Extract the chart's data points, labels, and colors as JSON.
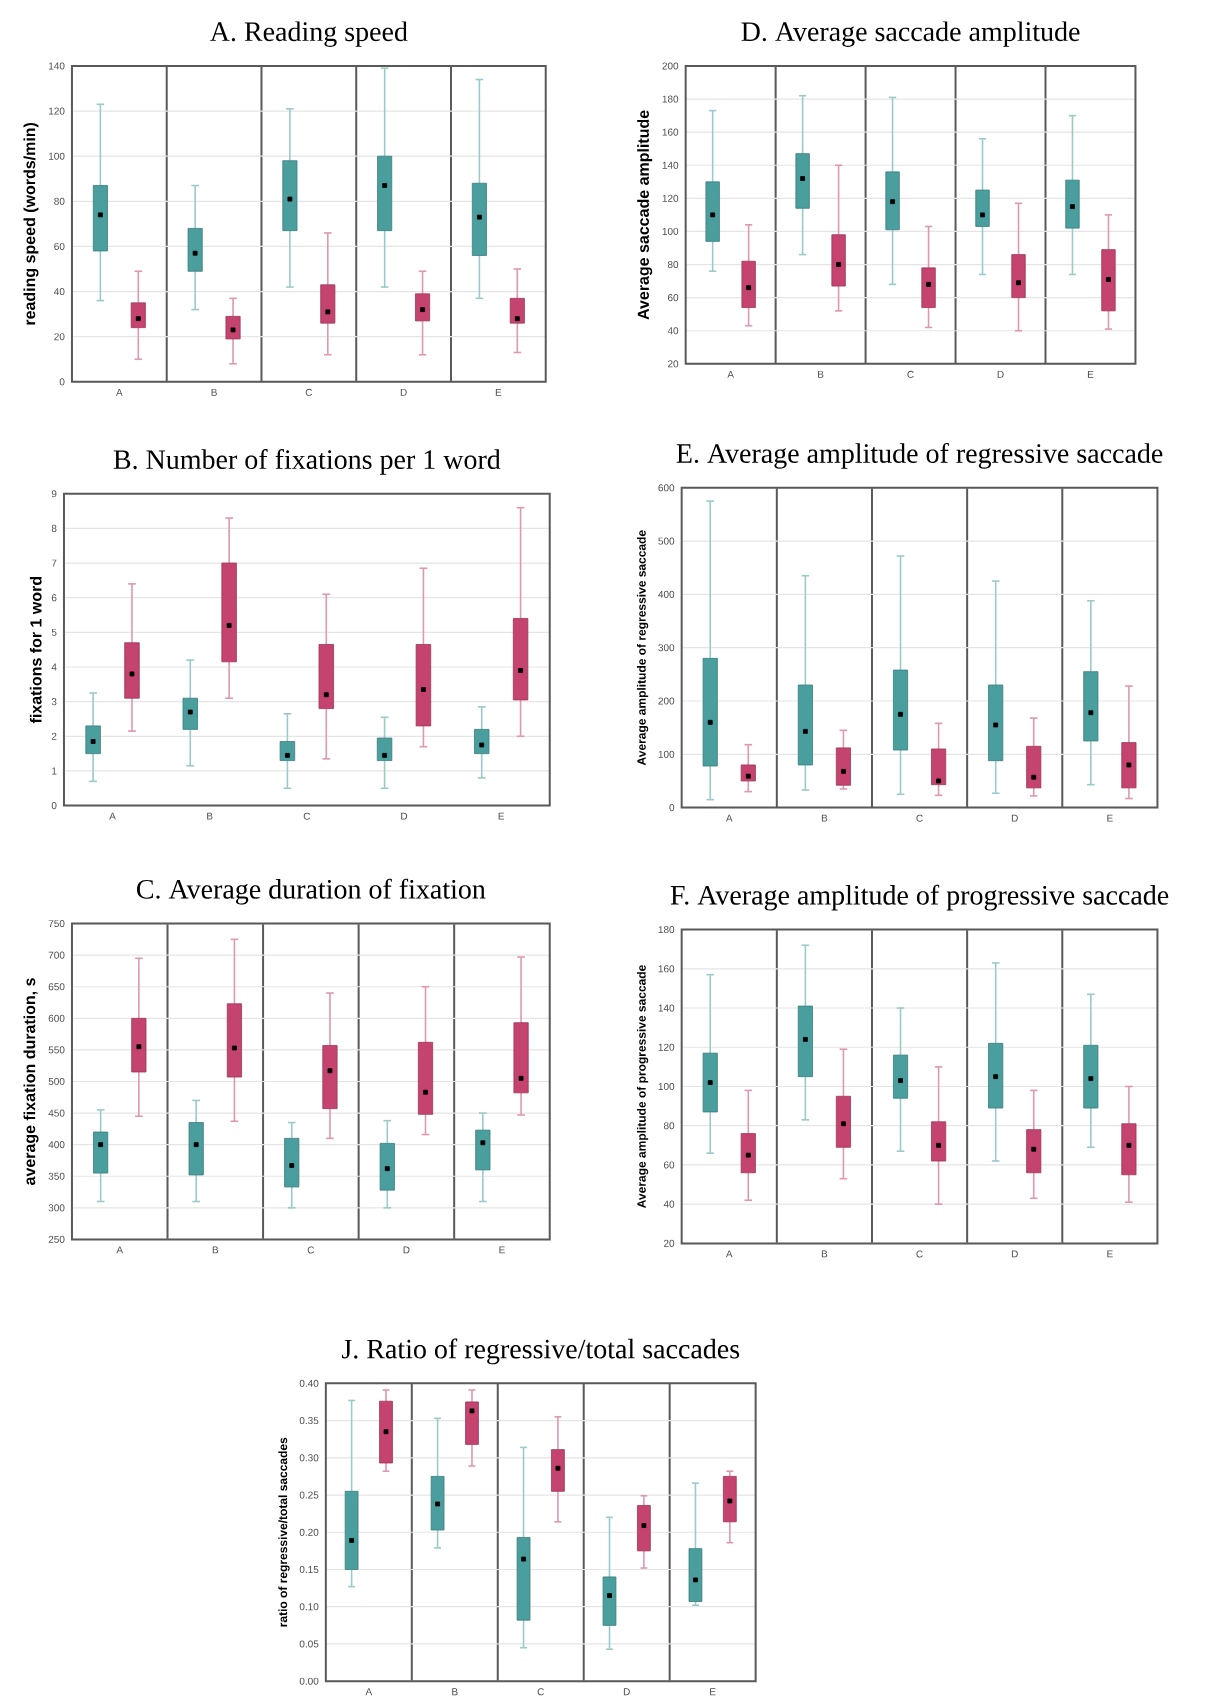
{
  "chart_data": [
    {
      "type": "box",
      "title": "A. Reading speed",
      "ylabel": "reading speed (words/min)",
      "categories": [
        "A",
        "B",
        "C",
        "D",
        "E"
      ],
      "ylim": [
        0,
        140
      ],
      "yticks": [
        0,
        20,
        40,
        60,
        80,
        100,
        120,
        140
      ],
      "grid": true,
      "series": [
        {
          "color": "#4a9e9e",
          "boxes": [
            {
              "low": 36,
              "q1": 58,
              "median": 74,
              "q3": 87,
              "high": 123
            },
            {
              "low": 32,
              "q1": 49,
              "median": 57,
              "q3": 68,
              "high": 87
            },
            {
              "low": 42,
              "q1": 67,
              "median": 81,
              "q3": 98,
              "high": 121
            },
            {
              "low": 42,
              "q1": 67,
              "median": 87,
              "q3": 100,
              "high": 139
            },
            {
              "low": 37,
              "q1": 56,
              "median": 73,
              "q3": 88,
              "high": 134
            }
          ]
        },
        {
          "color": "#c4436f",
          "boxes": [
            {
              "low": 10,
              "q1": 24,
              "median": 28,
              "q3": 35,
              "high": 49
            },
            {
              "low": 8,
              "q1": 19,
              "median": 23,
              "q3": 29,
              "high": 37
            },
            {
              "low": 12,
              "q1": 26,
              "median": 31,
              "q3": 43,
              "high": 66
            },
            {
              "low": 12,
              "q1": 27,
              "median": 32,
              "q3": 39,
              "high": 49
            },
            {
              "low": 13,
              "q1": 26,
              "median": 28,
              "q3": 37,
              "high": 50
            }
          ]
        }
      ]
    },
    {
      "type": "box",
      "title": "B. Number of fixations per 1 word",
      "ylabel": "fixations for 1 word",
      "categories": [
        "A",
        "B",
        "C",
        "D",
        "E"
      ],
      "ylim": [
        0,
        9
      ],
      "yticks": [
        0,
        1,
        2,
        3,
        4,
        5,
        6,
        7,
        8,
        9
      ],
      "grid": "y",
      "series": [
        {
          "color": "#4a9e9e",
          "boxes": [
            {
              "low": 0.7,
              "q1": 1.5,
              "median": 1.85,
              "q3": 2.3,
              "high": 3.25
            },
            {
              "low": 1.15,
              "q1": 2.2,
              "median": 2.7,
              "q3": 3.1,
              "high": 4.2
            },
            {
              "low": 0.5,
              "q1": 1.3,
              "median": 1.45,
              "q3": 1.85,
              "high": 2.65
            },
            {
              "low": 0.5,
              "q1": 1.3,
              "median": 1.45,
              "q3": 1.95,
              "high": 2.55
            },
            {
              "low": 0.8,
              "q1": 1.5,
              "median": 1.75,
              "q3": 2.2,
              "high": 2.85
            }
          ]
        },
        {
          "color": "#c4436f",
          "boxes": [
            {
              "low": 2.15,
              "q1": 3.1,
              "median": 3.8,
              "q3": 4.7,
              "high": 6.4
            },
            {
              "low": 3.1,
              "q1": 4.15,
              "median": 5.2,
              "q3": 7.0,
              "high": 8.3
            },
            {
              "low": 1.35,
              "q1": 2.8,
              "median": 3.2,
              "q3": 4.65,
              "high": 6.1
            },
            {
              "low": 1.7,
              "q1": 2.3,
              "median": 3.35,
              "q3": 4.65,
              "high": 6.85
            },
            {
              "low": 2.0,
              "q1": 3.05,
              "median": 3.9,
              "q3": 5.4,
              "high": 8.6
            }
          ]
        }
      ]
    },
    {
      "type": "box",
      "title": "C. Average duration of fixation",
      "ylabel": "average fixation duration, s",
      "categories": [
        "A",
        "B",
        "C",
        "D",
        "E"
      ],
      "ylim": [
        250,
        750
      ],
      "yticks": [
        250,
        300,
        350,
        400,
        450,
        500,
        550,
        600,
        650,
        700,
        750
      ],
      "grid": true,
      "series": [
        {
          "color": "#4a9e9e",
          "boxes": [
            {
              "low": 310,
              "q1": 355,
              "median": 400,
              "q3": 420,
              "high": 455
            },
            {
              "low": 310,
              "q1": 352,
              "median": 400,
              "q3": 435,
              "high": 470
            },
            {
              "low": 300,
              "q1": 333,
              "median": 367,
              "q3": 410,
              "high": 435
            },
            {
              "low": 300,
              "q1": 328,
              "median": 362,
              "q3": 402,
              "high": 438
            },
            {
              "low": 310,
              "q1": 360,
              "median": 403,
              "q3": 423,
              "high": 450
            }
          ]
        },
        {
          "color": "#c4436f",
          "boxes": [
            {
              "low": 445,
              "q1": 515,
              "median": 555,
              "q3": 600,
              "high": 695
            },
            {
              "low": 437,
              "q1": 507,
              "median": 553,
              "q3": 623,
              "high": 725
            },
            {
              "low": 410,
              "q1": 457,
              "median": 517,
              "q3": 557,
              "high": 640
            },
            {
              "low": 416,
              "q1": 448,
              "median": 483,
              "q3": 562,
              "high": 650
            },
            {
              "low": 447,
              "q1": 482,
              "median": 505,
              "q3": 593,
              "high": 697
            }
          ]
        }
      ]
    },
    {
      "type": "box",
      "title": "D. Average saccade amplitude",
      "ylabel": "Average saccade amplitude",
      "categories": [
        "A",
        "B",
        "C",
        "D",
        "E"
      ],
      "ylim": [
        20,
        200
      ],
      "yticks": [
        20,
        40,
        60,
        80,
        100,
        120,
        140,
        160,
        180,
        200
      ],
      "grid": true,
      "series": [
        {
          "color": "#4a9e9e",
          "boxes": [
            {
              "low": 76,
              "q1": 94,
              "median": 110,
              "q3": 130,
              "high": 173
            },
            {
              "low": 86,
              "q1": 114,
              "median": 132,
              "q3": 147,
              "high": 182
            },
            {
              "low": 68,
              "q1": 101,
              "median": 118,
              "q3": 136,
              "high": 181
            },
            {
              "low": 74,
              "q1": 103,
              "median": 110,
              "q3": 125,
              "high": 156
            },
            {
              "low": 74,
              "q1": 102,
              "median": 115,
              "q3": 131,
              "high": 170
            }
          ]
        },
        {
          "color": "#c4436f",
          "boxes": [
            {
              "low": 43,
              "q1": 54,
              "median": 66,
              "q3": 82,
              "high": 104
            },
            {
              "low": 52,
              "q1": 67,
              "median": 80,
              "q3": 98,
              "high": 140
            },
            {
              "low": 42,
              "q1": 54,
              "median": 68,
              "q3": 78,
              "high": 103
            },
            {
              "low": 40,
              "q1": 60,
              "median": 69,
              "q3": 86,
              "high": 117
            },
            {
              "low": 41,
              "q1": 52,
              "median": 71,
              "q3": 89,
              "high": 110
            }
          ]
        }
      ]
    },
    {
      "type": "box",
      "title": "E. Average amplitude of regressive saccade",
      "ylabel": "Average amplitude of regressive saccade",
      "categories": [
        "A",
        "B",
        "C",
        "D",
        "E"
      ],
      "ylim": [
        0,
        600
      ],
      "yticks": [
        0,
        100,
        200,
        300,
        400,
        500,
        600
      ],
      "grid": true,
      "series": [
        {
          "color": "#4a9e9e",
          "boxes": [
            {
              "low": 15,
              "q1": 78,
              "median": 160,
              "q3": 280,
              "high": 575
            },
            {
              "low": 33,
              "q1": 80,
              "median": 143,
              "q3": 230,
              "high": 435
            },
            {
              "low": 25,
              "q1": 108,
              "median": 175,
              "q3": 258,
              "high": 472
            },
            {
              "low": 27,
              "q1": 88,
              "median": 155,
              "q3": 230,
              "high": 425
            },
            {
              "low": 43,
              "q1": 125,
              "median": 178,
              "q3": 255,
              "high": 388
            }
          ]
        },
        {
          "color": "#c4436f",
          "boxes": [
            {
              "low": 30,
              "q1": 50,
              "median": 59,
              "q3": 80,
              "high": 118
            },
            {
              "low": 35,
              "q1": 42,
              "median": 68,
              "q3": 112,
              "high": 145
            },
            {
              "low": 23,
              "q1": 43,
              "median": 50,
              "q3": 110,
              "high": 158
            },
            {
              "low": 22,
              "q1": 37,
              "median": 57,
              "q3": 115,
              "high": 168
            },
            {
              "low": 17,
              "q1": 37,
              "median": 80,
              "q3": 122,
              "high": 228
            }
          ]
        }
      ]
    },
    {
      "type": "box",
      "title": "F. Average amplitude of progressive saccade",
      "ylabel": "Average amplitude of progressive saccade",
      "categories": [
        "A",
        "B",
        "C",
        "D",
        "E"
      ],
      "ylim": [
        20,
        180
      ],
      "yticks": [
        20,
        40,
        60,
        80,
        100,
        120,
        140,
        160,
        180
      ],
      "grid": true,
      "series": [
        {
          "color": "#4a9e9e",
          "boxes": [
            {
              "low": 66,
              "q1": 87,
              "median": 102,
              "q3": 117,
              "high": 157
            },
            {
              "low": 83,
              "q1": 105,
              "median": 124,
              "q3": 141,
              "high": 172
            },
            {
              "low": 67,
              "q1": 94,
              "median": 103,
              "q3": 116,
              "high": 140
            },
            {
              "low": 62,
              "q1": 89,
              "median": 105,
              "q3": 122,
              "high": 163
            },
            {
              "low": 69,
              "q1": 89,
              "median": 104,
              "q3": 121,
              "high": 147
            }
          ]
        },
        {
          "color": "#c4436f",
          "boxes": [
            {
              "low": 42,
              "q1": 56,
              "median": 65,
              "q3": 76,
              "high": 98
            },
            {
              "low": 53,
              "q1": 69,
              "median": 81,
              "q3": 95,
              "high": 119
            },
            {
              "low": 40,
              "q1": 62,
              "median": 70,
              "q3": 82,
              "high": 110
            },
            {
              "low": 43,
              "q1": 56,
              "median": 68,
              "q3": 78,
              "high": 98
            },
            {
              "low": 41,
              "q1": 55,
              "median": 70,
              "q3": 81,
              "high": 100
            }
          ]
        }
      ]
    },
    {
      "type": "box",
      "title": "J. Ratio of regressive/total saccades",
      "ylabel": "ratio of regressive/total saccades",
      "categories": [
        "A",
        "B",
        "C",
        "D",
        "E"
      ],
      "ylim": [
        0,
        0.4
      ],
      "grid": true,
      "yticks": [
        {
          "value": 0,
          "label": "0.00"
        },
        {
          "value": 0.05,
          "label": "0.05"
        },
        {
          "value": 0.1,
          "label": "0.10"
        },
        {
          "value": 0.15,
          "label": "0.15"
        },
        {
          "value": 0.2,
          "label": "0.20"
        },
        {
          "value": 0.25,
          "label": "0.25"
        },
        {
          "value": 0.3,
          "label": "0.30"
        },
        {
          "value": 0.35,
          "label": "0.35"
        },
        {
          "value": 0.4,
          "label": "0.40"
        }
      ],
      "series": [
        {
          "color": "#4a9e9e",
          "boxes": [
            {
              "low": 0.127,
              "q1": 0.15,
              "median": 0.189,
              "q3": 0.255,
              "high": 0.377
            },
            {
              "low": 0.179,
              "q1": 0.203,
              "median": 0.238,
              "q3": 0.275,
              "high": 0.353
            },
            {
              "low": 0.045,
              "q1": 0.082,
              "median": 0.164,
              "q3": 0.193,
              "high": 0.314
            },
            {
              "low": 0.043,
              "q1": 0.075,
              "median": 0.115,
              "q3": 0.14,
              "high": 0.22
            },
            {
              "low": 0.102,
              "q1": 0.107,
              "median": 0.136,
              "q3": 0.178,
              "high": 0.266
            }
          ]
        },
        {
          "color": "#c4436f",
          "boxes": [
            {
              "low": 0.282,
              "q1": 0.293,
              "median": 0.335,
              "q3": 0.376,
              "high": 0.391
            },
            {
              "low": 0.289,
              "q1": 0.318,
              "median": 0.363,
              "q3": 0.375,
              "high": 0.391
            },
            {
              "low": 0.214,
              "q1": 0.255,
              "median": 0.286,
              "q3": 0.311,
              "high": 0.355
            },
            {
              "low": 0.152,
              "q1": 0.175,
              "median": 0.209,
              "q3": 0.236,
              "high": 0.249
            },
            {
              "low": 0.186,
              "q1": 0.214,
              "median": 0.242,
              "q3": 0.275,
              "high": 0.282
            }
          ]
        }
      ]
    }
  ]
}
